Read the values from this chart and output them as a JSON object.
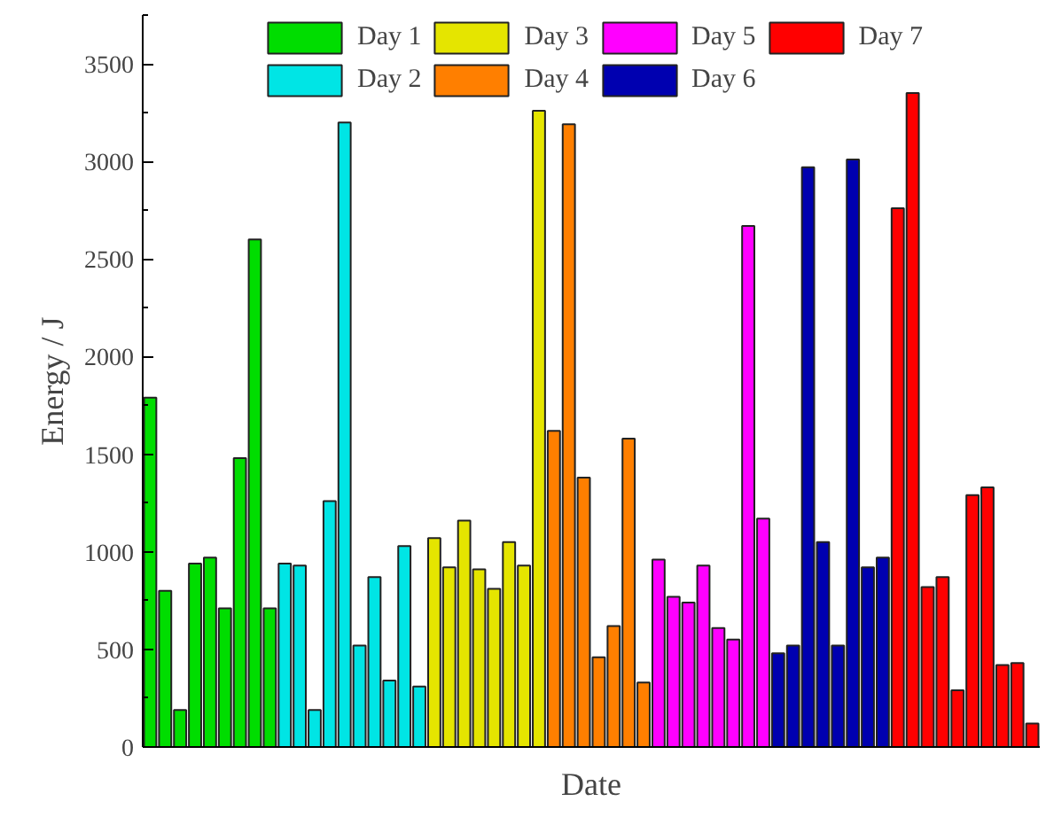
{
  "chart_data": {
    "type": "bar",
    "xlabel": "Date",
    "ylabel": "Energy / J",
    "categories": [
      null,
      null,
      null,
      null,
      null,
      null,
      null,
      null,
      null,
      null,
      null,
      null,
      null,
      null,
      null,
      null,
      null,
      null,
      null,
      null,
      null,
      null,
      null,
      null,
      null,
      null,
      null,
      null,
      null,
      null,
      null,
      null,
      null,
      null,
      null,
      null,
      null,
      null,
      null,
      null,
      null,
      null,
      null,
      null,
      null,
      null,
      null,
      null,
      null,
      null,
      null,
      null,
      null,
      null,
      null,
      null,
      null,
      null,
      null,
      null
    ],
    "ylim": [
      0,
      3750
    ],
    "yticks": [
      0,
      500,
      1000,
      1500,
      2000,
      2500,
      3000,
      3500
    ],
    "tick_labels": "y",
    "grid": false,
    "legend": "top",
    "series": [
      {
        "name": "Day 1",
        "color": "#00dd00",
        "values": [
          1790,
          800,
          190,
          940,
          970,
          710,
          1480,
          2600,
          710,
          null,
          null,
          null,
          null,
          null,
          null,
          null,
          null,
          null,
          null,
          null,
          null,
          null,
          null,
          null,
          null,
          null,
          null,
          null,
          null,
          null,
          null,
          null,
          null,
          null,
          null,
          null,
          null,
          null,
          null,
          null,
          null,
          null,
          null,
          null,
          null,
          null,
          null,
          null,
          null,
          null,
          null,
          null,
          null,
          null,
          null,
          null,
          null,
          null,
          null,
          null
        ]
      },
      {
        "name": "Day 2",
        "color": "#00e5e5",
        "values": [
          null,
          null,
          null,
          null,
          null,
          null,
          null,
          null,
          null,
          940,
          930,
          190,
          1260,
          3200,
          520,
          870,
          340,
          1030,
          310,
          null,
          null,
          null,
          null,
          null,
          null,
          null,
          null,
          null,
          null,
          null,
          null,
          null,
          null,
          null,
          null,
          null,
          null,
          null,
          null,
          null,
          null,
          null,
          null,
          null,
          null,
          null,
          null,
          null,
          null,
          null,
          null,
          null,
          null,
          null,
          null,
          null,
          null,
          null,
          null,
          null
        ]
      },
      {
        "name": "Day 3",
        "color": "#e5e500",
        "values": [
          null,
          null,
          null,
          null,
          null,
          null,
          null,
          null,
          null,
          null,
          null,
          null,
          null,
          null,
          null,
          null,
          null,
          null,
          null,
          1070,
          920,
          1160,
          910,
          810,
          1050,
          930,
          3260,
          null,
          null,
          null,
          null,
          null,
          null,
          null,
          null,
          null,
          null,
          null,
          null,
          null,
          null,
          null,
          null,
          null,
          null,
          null,
          null,
          null,
          null,
          null,
          null,
          null,
          null,
          null,
          null,
          null,
          null,
          null,
          null,
          null
        ]
      },
      {
        "name": "Day 4",
        "color": "#ff7f00",
        "values": [
          null,
          null,
          null,
          null,
          null,
          null,
          null,
          null,
          null,
          null,
          null,
          null,
          null,
          null,
          null,
          null,
          null,
          null,
          null,
          null,
          null,
          null,
          null,
          null,
          null,
          null,
          null,
          1620,
          3190,
          1380,
          460,
          620,
          1580,
          330,
          null,
          null,
          null,
          null,
          null,
          null,
          null,
          null,
          null,
          null,
          null,
          null,
          null,
          null,
          null,
          null,
          null,
          null,
          null,
          null,
          null,
          null,
          null,
          null,
          null,
          null
        ]
      },
      {
        "name": "Day 5",
        "color": "#ff00ff",
        "values": [
          null,
          null,
          null,
          null,
          null,
          null,
          null,
          null,
          null,
          null,
          null,
          null,
          null,
          null,
          null,
          null,
          null,
          null,
          null,
          null,
          null,
          null,
          null,
          null,
          null,
          null,
          null,
          null,
          null,
          null,
          null,
          null,
          null,
          null,
          960,
          770,
          740,
          930,
          610,
          550,
          2670,
          1170,
          null,
          null,
          null,
          null,
          null,
          null,
          null,
          null,
          null,
          null,
          null,
          null,
          null,
          null,
          null,
          null,
          null,
          null
        ]
      },
      {
        "name": "Day 6",
        "color": "#0000b0",
        "values": [
          null,
          null,
          null,
          null,
          null,
          null,
          null,
          null,
          null,
          null,
          null,
          null,
          null,
          null,
          null,
          null,
          null,
          null,
          null,
          null,
          null,
          null,
          null,
          null,
          null,
          null,
          null,
          null,
          null,
          null,
          null,
          null,
          null,
          null,
          null,
          null,
          null,
          null,
          null,
          null,
          null,
          null,
          480,
          520,
          2970,
          1050,
          520,
          3010,
          920,
          970,
          null,
          null,
          null,
          null,
          null,
          null,
          null,
          null,
          null,
          null
        ]
      },
      {
        "name": "Day 7",
        "color": "#ff0000",
        "values": [
          null,
          null,
          null,
          null,
          null,
          null,
          null,
          null,
          null,
          null,
          null,
          null,
          null,
          null,
          null,
          null,
          null,
          null,
          null,
          null,
          null,
          null,
          null,
          null,
          null,
          null,
          null,
          null,
          null,
          null,
          null,
          null,
          null,
          null,
          null,
          null,
          null,
          null,
          null,
          null,
          null,
          null,
          null,
          null,
          null,
          null,
          null,
          null,
          null,
          null,
          2760,
          3350,
          820,
          870,
          290,
          1290,
          1330,
          420,
          430,
          120
        ]
      }
    ]
  }
}
